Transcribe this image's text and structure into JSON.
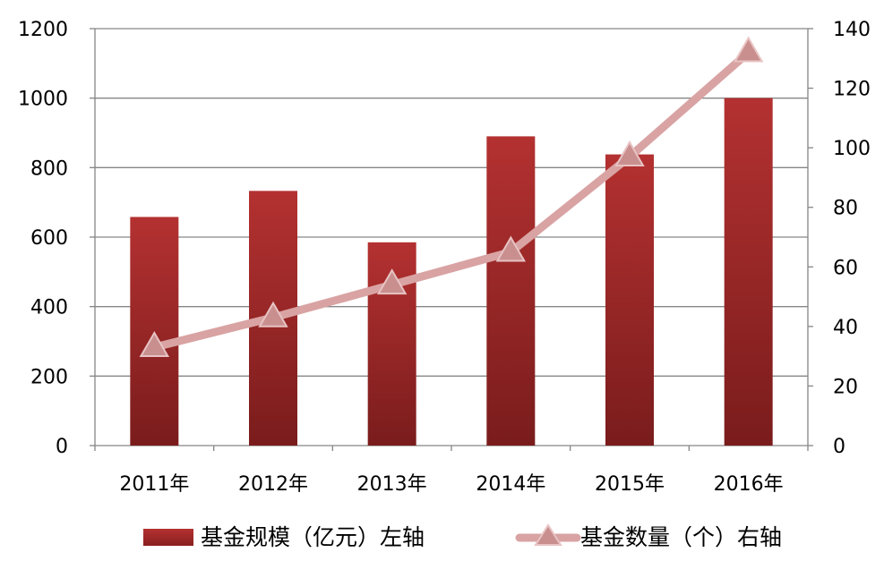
{
  "chart_data": {
    "type": "bar",
    "categories": [
      "2011年",
      "2012年",
      "2013年",
      "2014年",
      "2015年",
      "2016年"
    ],
    "series": [
      {
        "name": "基金规模（亿元）左轴",
        "type": "bar",
        "axis": "left",
        "values": [
          658,
          733,
          585,
          890,
          838,
          1000
        ],
        "color": "#a82a2a"
      },
      {
        "name": "基金数量（个）右轴",
        "type": "line",
        "marker": "triangle",
        "axis": "right",
        "values": [
          33,
          43,
          54,
          65,
          97,
          132
        ],
        "color": "#d9a3a3"
      }
    ],
    "y_left": {
      "ylim": [
        0,
        1200
      ],
      "ticks": [
        0,
        200,
        400,
        600,
        800,
        1000,
        1200
      ]
    },
    "y_right": {
      "ylim": [
        0,
        140
      ],
      "ticks": [
        0,
        20,
        40,
        60,
        80,
        100,
        120,
        140
      ]
    },
    "grid": true,
    "legend_position": "bottom"
  }
}
